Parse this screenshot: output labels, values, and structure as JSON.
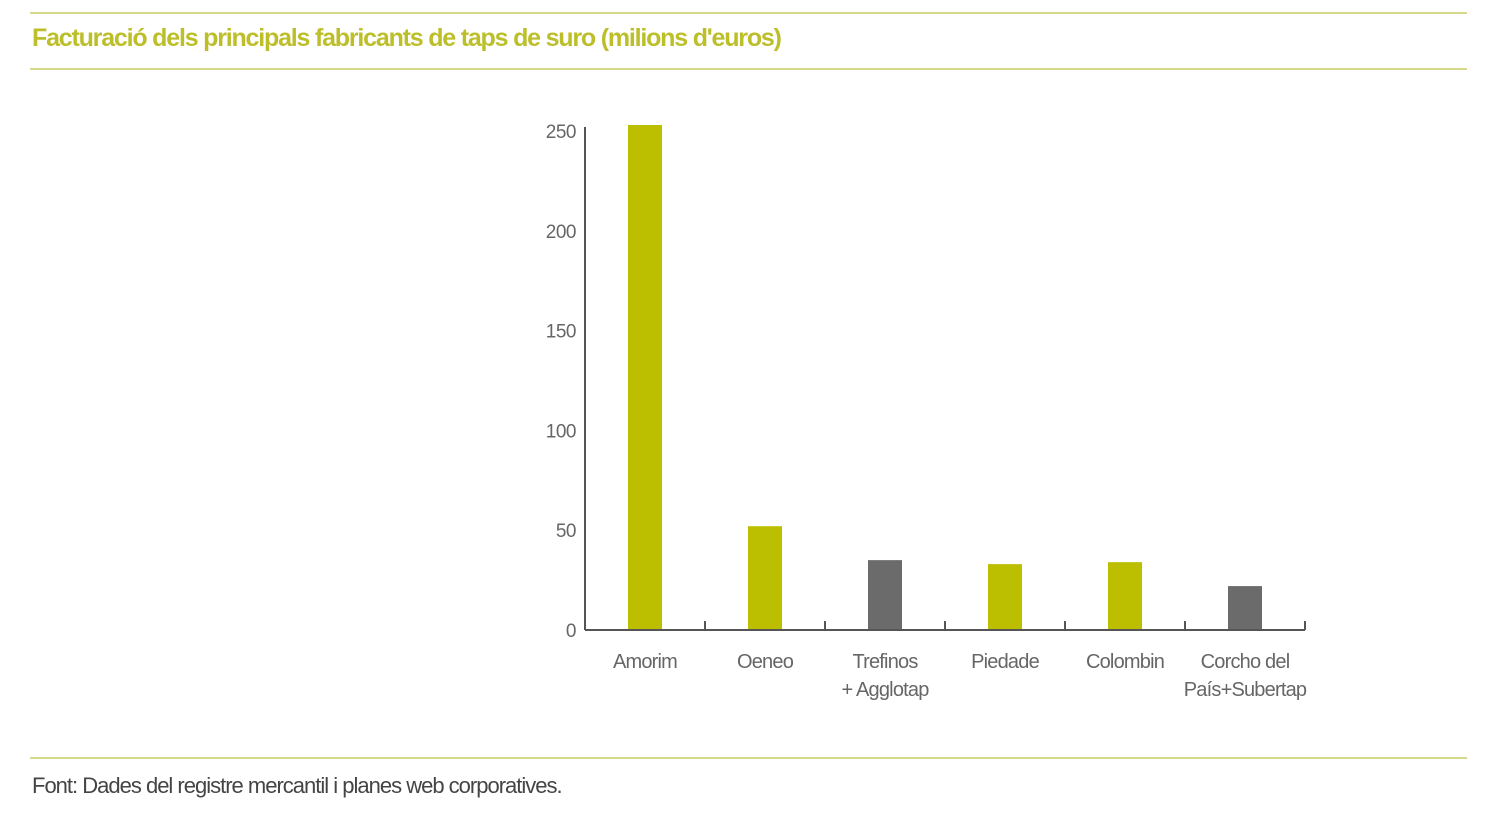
{
  "title": "Facturació dels principals fabricants de taps de suro (milions d'euros)",
  "source": "Font: Dades del registre mercantil i planes web corporatives.",
  "colors": {
    "highlight": "#bcbf00",
    "other": "#6b6b6b",
    "axis": "#555555",
    "rule": "#d6d98a"
  },
  "chart_data": {
    "type": "bar",
    "title": "Facturació dels principals fabricants de taps de suro (milions d'euros)",
    "categories": [
      [
        "Amorim"
      ],
      [
        "Oeneo"
      ],
      [
        "Trefinos",
        "+ Agglotap"
      ],
      [
        "Piedade"
      ],
      [
        "Colombin"
      ],
      [
        "Corcho del",
        "País+Subertap"
      ]
    ],
    "values": [
      253,
      52,
      35,
      33,
      34,
      22
    ],
    "bar_colors": [
      "highlight",
      "highlight",
      "other",
      "highlight",
      "highlight",
      "other"
    ],
    "yticks": [
      0,
      50,
      100,
      150,
      200,
      250
    ],
    "ylim": [
      0,
      253
    ],
    "xlabel": "",
    "ylabel": "",
    "grid": false,
    "legend": "none"
  }
}
